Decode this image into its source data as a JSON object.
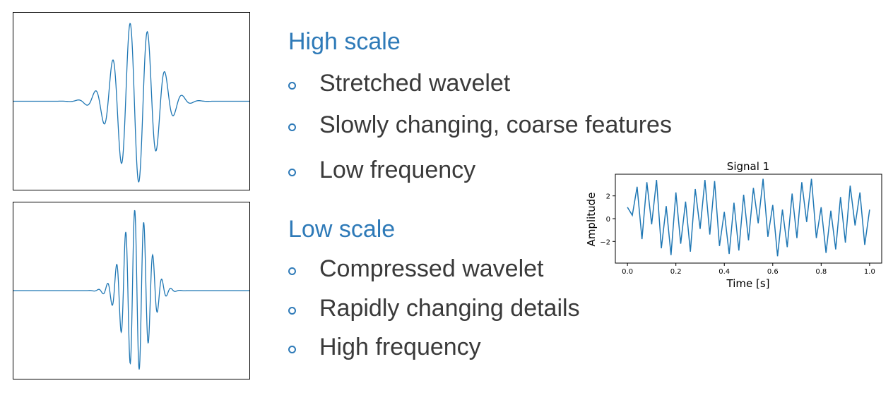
{
  "high_scale": {
    "heading": "High scale",
    "bullets": [
      "Stretched wavelet",
      "Slowly changing, coarse features",
      "Low frequency"
    ]
  },
  "low_scale": {
    "heading": "Low scale",
    "bullets": [
      "Compressed wavelet",
      "Rapidly changing details",
      "High frequency"
    ]
  },
  "colors": {
    "accent": "#2e7ab8",
    "wave": "#1f77b4",
    "body_text": "#3a3a3a"
  },
  "chart_data": {
    "type": "line",
    "title": "Signal 1",
    "xlabel": "Time [s]",
    "ylabel": "Amplitude",
    "xlim": [
      -0.05,
      1.05
    ],
    "ylim": [
      -3.9,
      3.9
    ],
    "xticks": [
      0.0,
      0.2,
      0.4,
      0.6,
      0.8,
      1.0
    ],
    "xtick_labels": [
      "0.0",
      "0.2",
      "0.4",
      "0.6",
      "0.8",
      "1.0"
    ],
    "yticks": [
      2,
      0,
      -2
    ],
    "ytick_labels": [
      "2",
      "0",
      "−2"
    ],
    "grid": false,
    "legend": "none",
    "series": [
      {
        "x": [
          0.0,
          0.02,
          0.04,
          0.06,
          0.08,
          0.1,
          0.12,
          0.14,
          0.16,
          0.18,
          0.2,
          0.22,
          0.24,
          0.26,
          0.28,
          0.3,
          0.32,
          0.34,
          0.36,
          0.38,
          0.4,
          0.42,
          0.44,
          0.46,
          0.48,
          0.5,
          0.52,
          0.54,
          0.56,
          0.58,
          0.6,
          0.62,
          0.64,
          0.66,
          0.68,
          0.7,
          0.72,
          0.74,
          0.76,
          0.78,
          0.8,
          0.82,
          0.84,
          0.86,
          0.88,
          0.9,
          0.92,
          0.94,
          0.96,
          0.98,
          1.0
        ],
        "y": [
          1.0,
          0.3,
          2.8,
          -1.8,
          3.2,
          -0.5,
          3.4,
          -2.6,
          1.1,
          -3.2,
          2.3,
          -2.2,
          1.5,
          -2.9,
          2.6,
          -0.9,
          3.4,
          -1.4,
          3.3,
          -2.4,
          0.6,
          -3.1,
          1.4,
          -2.8,
          2.1,
          -1.9,
          2.7,
          -0.4,
          3.5,
          -1.6,
          1.2,
          -3.3,
          0.8,
          -2.5,
          2.2,
          -1.7,
          3.2,
          -0.3,
          3.5,
          -1.7,
          1.0,
          -3.0,
          0.7,
          -2.7,
          1.9,
          -2.1,
          2.9,
          -0.6,
          2.3,
          -2.3,
          0.8
        ]
      }
    ]
  }
}
